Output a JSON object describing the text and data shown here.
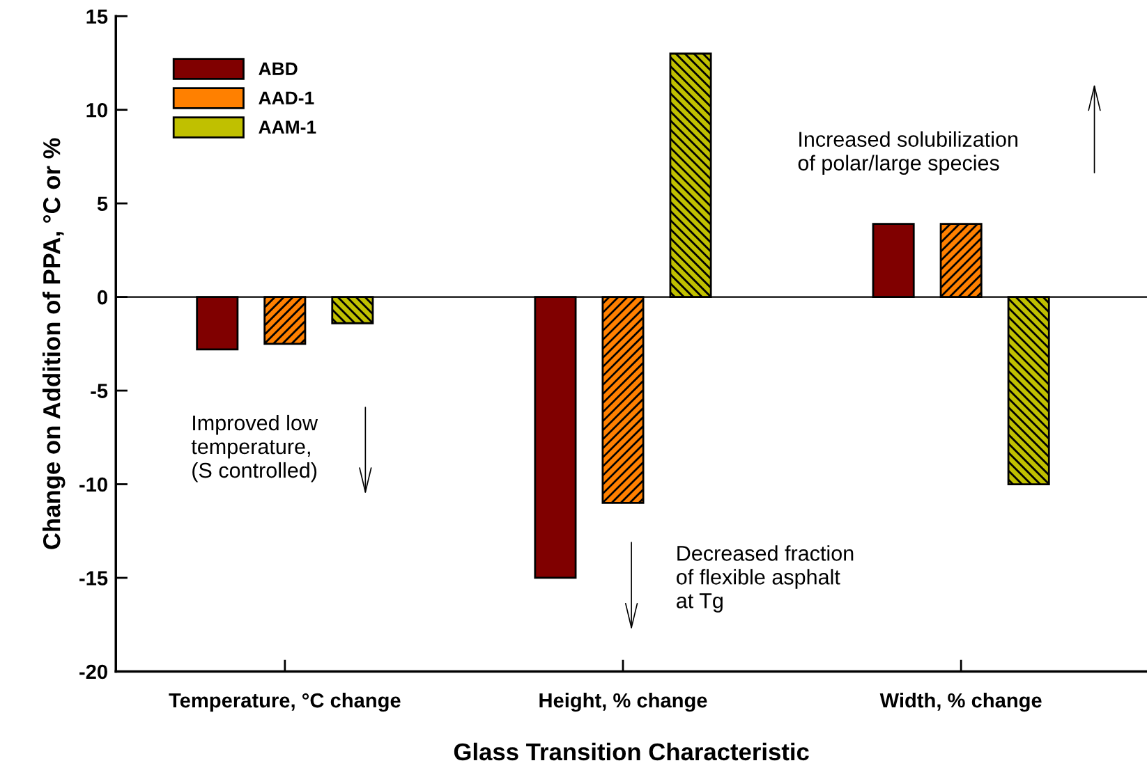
{
  "chart_data": {
    "type": "bar",
    "xlabel": "Glass Transition Characteristic",
    "ylabel": "Change on Addition of PPA, °C or %",
    "categories": [
      "Temperature, °C change",
      "Height, % change",
      "Width, % change"
    ],
    "series": [
      {
        "name": "ABD",
        "color": "#800000",
        "values": [
          -2.8,
          -15,
          3.9
        ]
      },
      {
        "name": "AAD-1",
        "color": "#ff8000",
        "values": [
          -2.5,
          -11,
          3.9
        ]
      },
      {
        "name": "AAM-1",
        "color": "#c0c000",
        "values": [
          -1.4,
          13,
          -10
        ]
      }
    ],
    "ylim": [
      -20,
      15
    ],
    "yticks": [
      -20,
      -15,
      -10,
      -5,
      0,
      5,
      10,
      15
    ],
    "ref_lines": [
      {
        "axis": "y",
        "value": 0
      }
    ],
    "legend": "top left",
    "grid": false,
    "annotations": [
      "Improved low\ntemperature,\n(S controlled)",
      "Decreased fraction\nof flexible asphalt\nat Tg",
      "Increased solubilization\nof polar/large species"
    ]
  }
}
